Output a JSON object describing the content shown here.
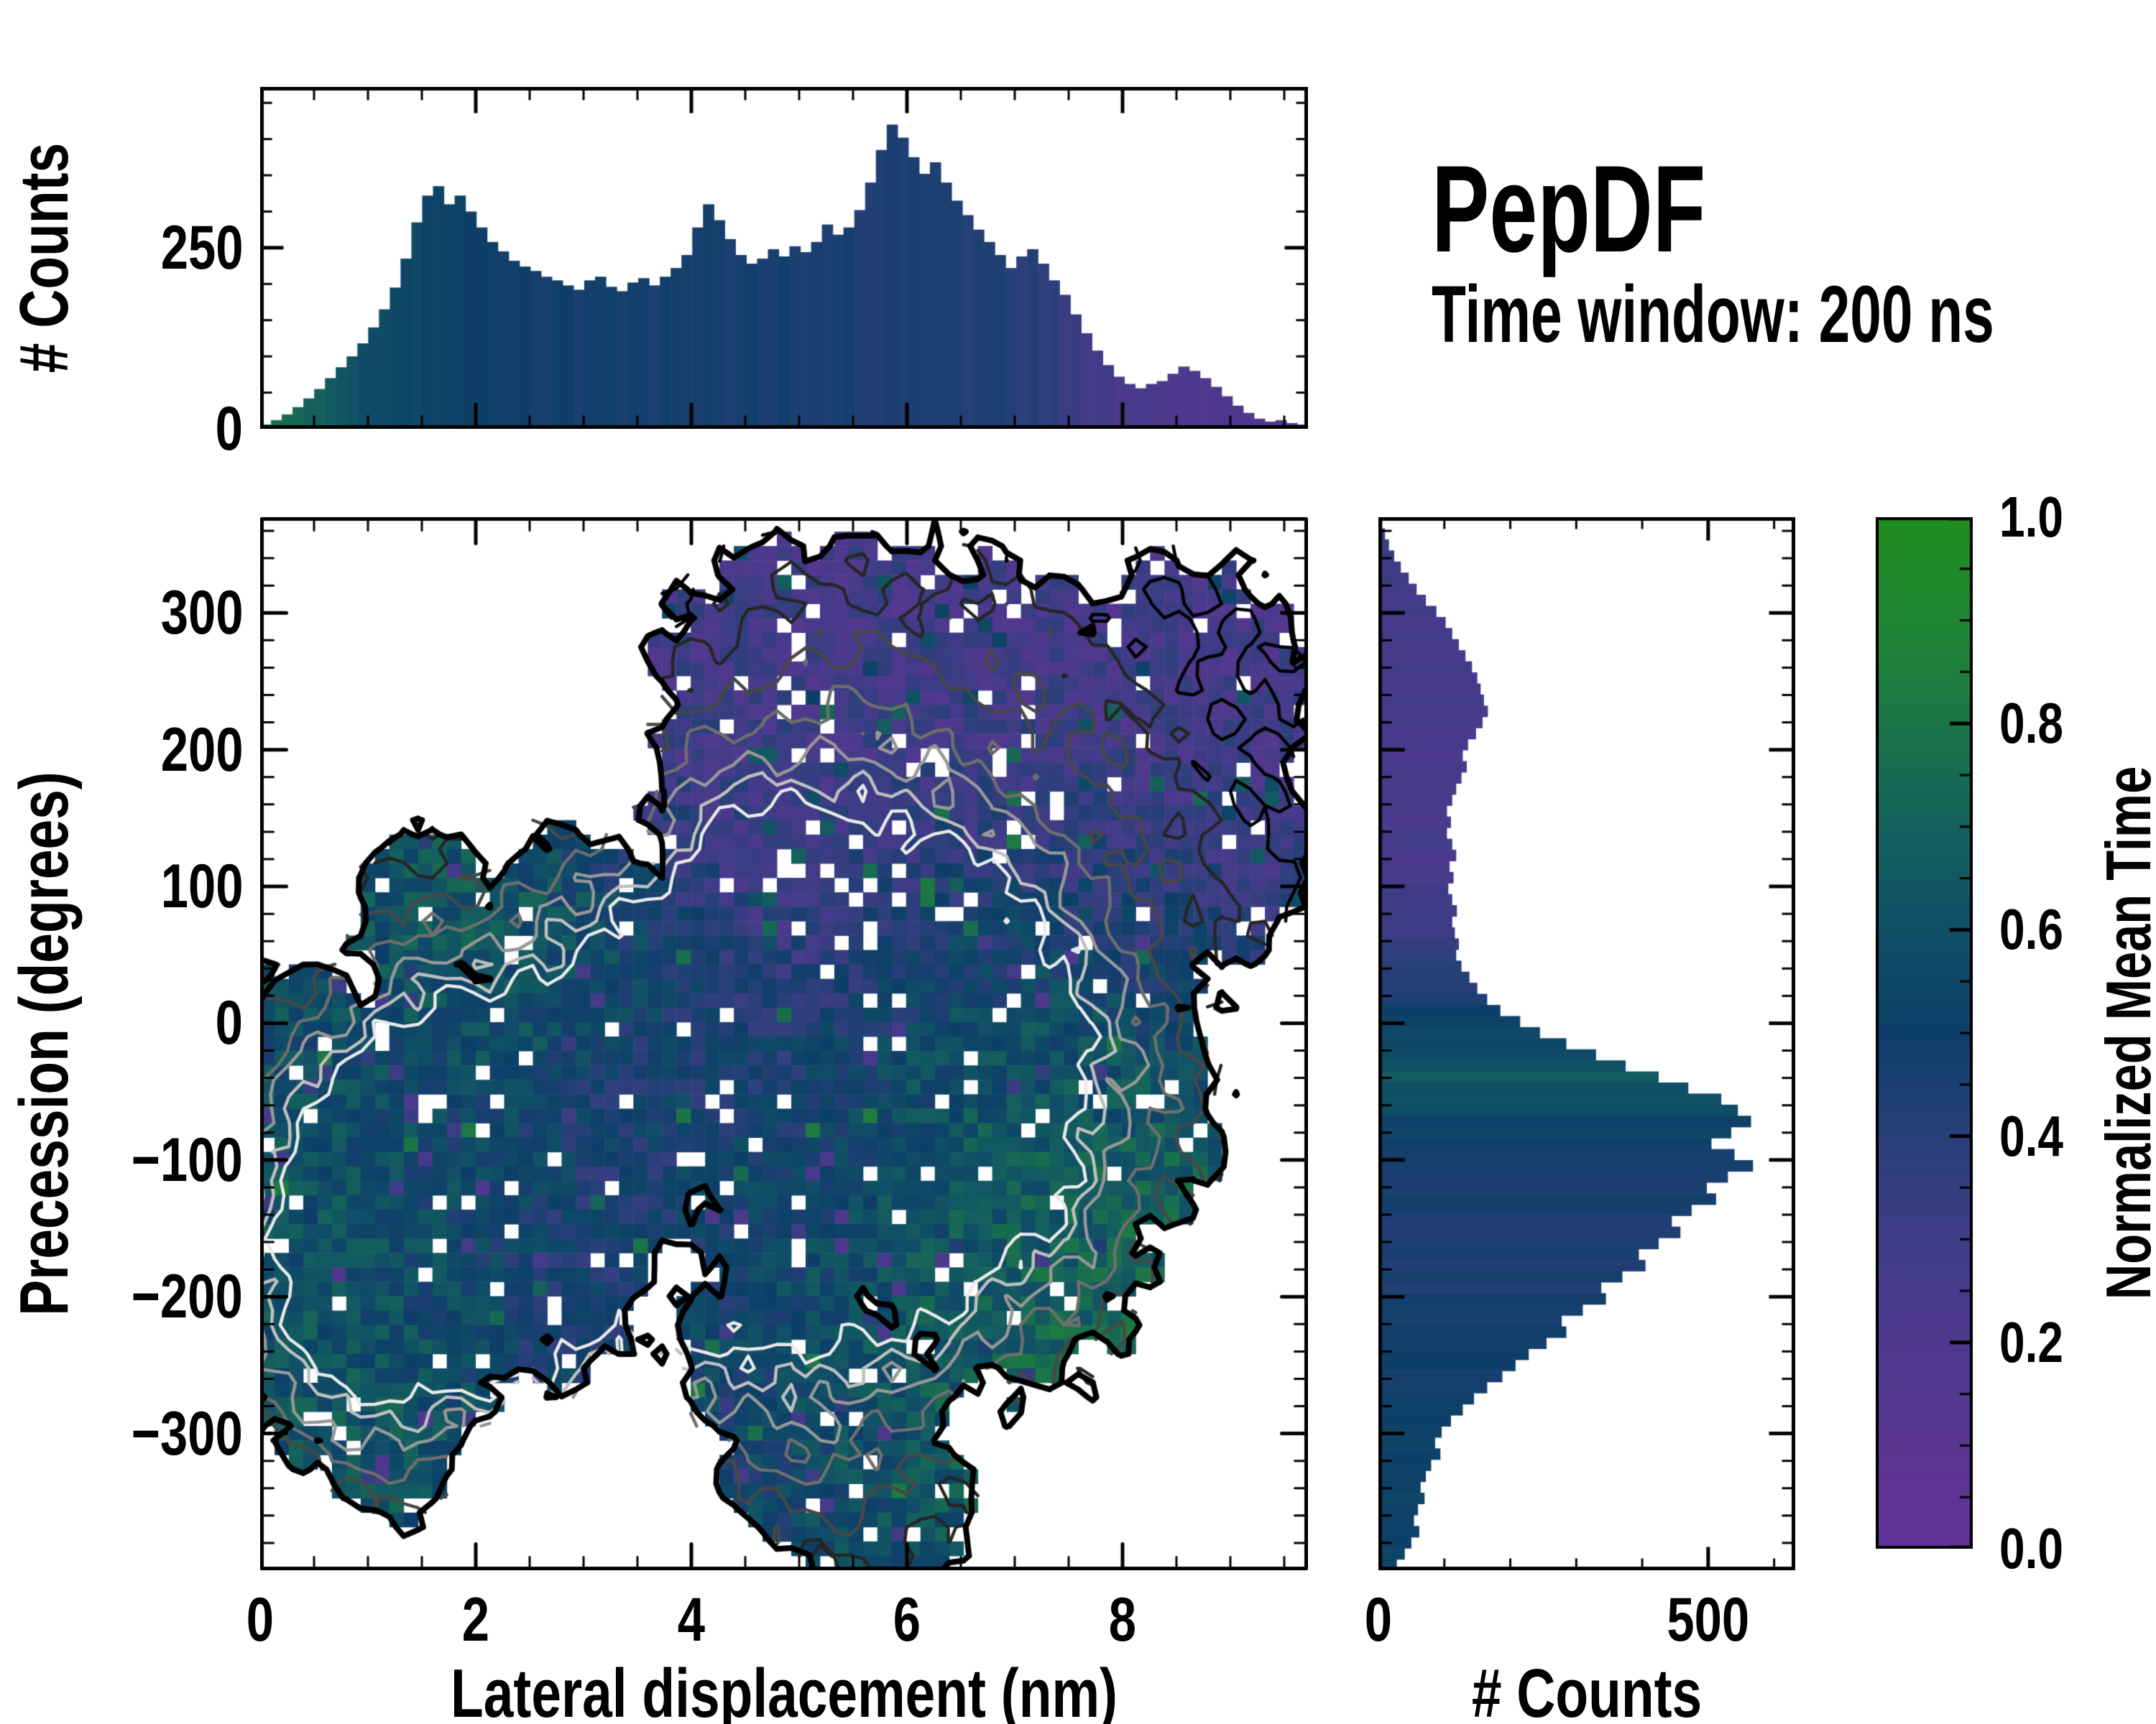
{
  "title": {
    "name": "PepDF",
    "subtitle": "Time window: 200 ns"
  },
  "labels": {
    "top_ylabel": "# Counts",
    "main_xlabel": "Lateral displacement (nm)",
    "main_ylabel": "Precession (degrees)",
    "right_xlabel": "# Counts",
    "colorbar_label": "Normalized Mean Time"
  },
  "colors": {
    "background": "#ffffff",
    "axis": "#000000",
    "colormap_stops": [
      [
        0,
        "#613299"
      ],
      [
        0.12,
        "#57368f"
      ],
      [
        0.25,
        "#473a8b"
      ],
      [
        0.38,
        "#2e3f7c"
      ],
      [
        0.5,
        "#0d3f68"
      ],
      [
        0.6,
        "#104f66"
      ],
      [
        0.7,
        "#14605c"
      ],
      [
        0.8,
        "#1b7547"
      ],
      [
        0.9,
        "#218634"
      ],
      [
        1,
        "#1f8c1f"
      ]
    ],
    "contour_colors": [
      "#000000",
      "#262626",
      "#474747",
      "#6e6e6e",
      "#979797",
      "#bfbfbf",
      "#e9e9e9"
    ],
    "outline_color": "#000000"
  },
  "chart_data": [
    {
      "type": "bar",
      "panel": "top-histogram",
      "ylabel": "# Counts",
      "xlim": [
        0,
        9.72
      ],
      "ylim": [
        0,
        472
      ],
      "bin_width": 0.1,
      "x_start": 0.05,
      "values": [
        6,
        12,
        20,
        30,
        42,
        55,
        70,
        85,
        100,
        118,
        140,
        165,
        195,
        235,
        285,
        322,
        335,
        310,
        322,
        300,
        278,
        258,
        245,
        232,
        224,
        218,
        210,
        205,
        198,
        192,
        205,
        210,
        196,
        190,
        202,
        208,
        198,
        210,
        222,
        240,
        278,
        310,
        288,
        262,
        240,
        228,
        235,
        248,
        238,
        252,
        244,
        258,
        282,
        268,
        278,
        302,
        340,
        385,
        420,
        402,
        375,
        352,
        368,
        340,
        315,
        295,
        275,
        258,
        240,
        222,
        238,
        248,
        228,
        205,
        185,
        158,
        132,
        108,
        88,
        72,
        62,
        56,
        62,
        66,
        76,
        86,
        80,
        70,
        58,
        45,
        32,
        22,
        14,
        10,
        12,
        8,
        6
      ],
      "yticks": {
        "values": [
          0,
          250
        ],
        "labels": [
          "0",
          "250"
        ],
        "minor_step": 50,
        "minor_max": 450
      },
      "xticks": {
        "values": [
          0,
          2,
          4,
          6,
          8
        ],
        "labels": [
          "0",
          "2",
          "4",
          "6",
          "8"
        ],
        "minor_step": 0.5
      },
      "color_profile": [
        [
          0,
          0.8
        ],
        [
          0.5,
          0.7
        ],
        [
          0.9,
          0.6
        ],
        [
          1.2,
          0.55
        ],
        [
          1.8,
          0.52
        ],
        [
          2.4,
          0.49
        ],
        [
          3.2,
          0.47
        ],
        [
          4.2,
          0.46
        ],
        [
          5.0,
          0.47
        ],
        [
          5.6,
          0.44
        ],
        [
          6.2,
          0.43
        ],
        [
          6.9,
          0.42
        ],
        [
          7.3,
          0.38
        ],
        [
          7.7,
          0.28
        ],
        [
          8.1,
          0.22
        ],
        [
          8.6,
          0.21
        ],
        [
          9.7,
          0.2
        ]
      ]
    },
    {
      "type": "heatmap",
      "panel": "joint-distribution",
      "xlabel": "Lateral displacement (nm)",
      "ylabel": "Precession (degrees)",
      "xlim": [
        0,
        9.72
      ],
      "ylim": [
        -400,
        370
      ],
      "xticks": {
        "values": [
          0,
          2,
          4,
          6,
          8
        ],
        "labels": [
          "0",
          "2",
          "4",
          "6",
          "8"
        ],
        "minor_step": 0.5
      },
      "yticks": {
        "values": [
          300,
          200,
          100,
          0,
          -100,
          -200,
          -300
        ],
        "labels": [
          "300",
          "200",
          "100",
          "0",
          "−100",
          "−200",
          "−300"
        ],
        "minor_step": 20
      },
      "colorbar_label": "Normalized Mean Time",
      "clim": [
        0,
        1
      ],
      "colorbar_ticks": {
        "values": [
          0,
          0.2,
          0.4,
          0.6,
          0.8,
          1.0
        ],
        "labels": [
          "0.0",
          "0.2",
          "0.4",
          "0.6",
          "0.8",
          "1.0"
        ],
        "minor_step": 0.05
      },
      "grid": [
        73,
        73
      ],
      "distribution": {
        "mask_blobs": [
          [
            5.0,
            240,
            1.3,
            115
          ],
          [
            6.3,
            190,
            2.25,
            150
          ],
          [
            8.65,
            245,
            1.05,
            95
          ],
          [
            7.7,
            110,
            1.55,
            115
          ],
          [
            8.9,
            135,
            0.85,
            85
          ],
          [
            5.6,
            312,
            0.75,
            42
          ],
          [
            4.55,
            120,
            0.95,
            95
          ],
          [
            4.2,
            -5,
            1.25,
            105
          ],
          [
            3.0,
            55,
            1.1,
            80
          ],
          [
            1.5,
            85,
            0.6,
            55
          ],
          [
            1.9,
            -115,
            2.0,
            160
          ],
          [
            0.55,
            -185,
            0.95,
            130
          ],
          [
            2.9,
            -70,
            1.5,
            130
          ],
          [
            1.15,
            -265,
            0.85,
            85
          ],
          [
            0.5,
            -40,
            0.75,
            85
          ],
          [
            1.3,
            -310,
            0.42,
            55
          ],
          [
            5.6,
            -55,
            1.9,
            165
          ],
          [
            6.9,
            -145,
            1.35,
            125
          ],
          [
            7.35,
            -25,
            1.3,
            95
          ],
          [
            6.5,
            45,
            1.05,
            85
          ],
          [
            8.1,
            -60,
            0.8,
            90
          ],
          [
            5.3,
            -300,
            1.05,
            95
          ],
          [
            5.75,
            -360,
            0.85,
            70
          ],
          [
            4.85,
            -245,
            0.95,
            85
          ]
        ],
        "value_blobs": [
          [
            6.3,
            200,
            2.6,
            150,
            0.24,
            3.0
          ],
          [
            8.6,
            240,
            1.2,
            100,
            0.22,
            2.0
          ],
          [
            7.8,
            110,
            1.6,
            110,
            0.24,
            2.0
          ],
          [
            4.9,
            255,
            1.2,
            90,
            0.26,
            1.5
          ],
          [
            4.7,
            70,
            0.55,
            55,
            0.1,
            1.8
          ],
          [
            3.3,
            -25,
            0.4,
            45,
            0.25,
            1.2
          ],
          [
            1.8,
            -120,
            1.9,
            150,
            0.5,
            2.2
          ],
          [
            0.5,
            -110,
            0.8,
            150,
            0.68,
            1.6
          ],
          [
            1.0,
            -250,
            1.0,
            100,
            0.66,
            1.4
          ],
          [
            2.8,
            60,
            0.8,
            80,
            0.85,
            1.8
          ],
          [
            1.4,
            90,
            0.6,
            60,
            0.8,
            1.2
          ],
          [
            3.6,
            -150,
            0.8,
            80,
            0.32,
            1.3
          ],
          [
            2.6,
            -210,
            0.7,
            60,
            0.38,
            1.0
          ],
          [
            2.3,
            -60,
            1.0,
            90,
            0.55,
            1.0
          ],
          [
            5.6,
            -50,
            1.5,
            130,
            0.48,
            2.0
          ],
          [
            7.2,
            -80,
            1.5,
            160,
            0.8,
            2.4
          ],
          [
            6.4,
            -220,
            1.2,
            90,
            0.78,
            1.6
          ],
          [
            8.1,
            -10,
            0.9,
            80,
            0.75,
            1.2
          ],
          [
            6.9,
            30,
            0.8,
            70,
            0.82,
            1.2
          ],
          [
            4.9,
            -140,
            1.0,
            100,
            0.45,
            1.2
          ],
          [
            4.0,
            20,
            0.8,
            80,
            0.62,
            1.4
          ],
          [
            4.5,
            120,
            0.8,
            80,
            0.3,
            1.2
          ],
          [
            5.3,
            -300,
            1.2,
            110,
            0.5,
            1.8
          ],
          [
            4.6,
            -230,
            0.8,
            70,
            0.52,
            1.2
          ],
          [
            1.3,
            -300,
            0.5,
            70,
            0.64,
            1.4
          ]
        ],
        "density_peaks": [
          [
            1.75,
            -120,
            1.45,
            130,
            1.0
          ],
          [
            5.6,
            -40,
            1.45,
            115,
            1.02
          ],
          [
            3.6,
            -90,
            1.7,
            150,
            0.55
          ],
          [
            6.2,
            190,
            2.1,
            150,
            0.42
          ],
          [
            0.9,
            -200,
            0.9,
            110,
            0.5
          ],
          [
            7.0,
            -100,
            1.5,
            140,
            0.5
          ],
          [
            5.2,
            -300,
            1.2,
            110,
            0.33
          ],
          [
            4.6,
            110,
            0.9,
            90,
            0.3
          ]
        ],
        "contour_levels": [
          0.16,
          0.3,
          0.44,
          0.58,
          0.71,
          0.82,
          0.91
        ],
        "hole_fraction": 0.045,
        "hole_fraction_upper": 0.075,
        "seed": 42
      }
    },
    {
      "type": "bar",
      "panel": "right-histogram",
      "xlabel": "# Counts",
      "orientation": "horizontal",
      "xlim": [
        0,
        632
      ],
      "ylim": [
        -400,
        370
      ],
      "bin_count": 95,
      "values": [
        6,
        10,
        16,
        24,
        34,
        46,
        58,
        72,
        88,
        102,
        112,
        122,
        132,
        142,
        150,
        155,
        160,
        166,
        158,
        148,
        136,
        128,
        134,
        126,
        118,
        112,
        104,
        110,
        104,
        112,
        118,
        108,
        114,
        106,
        112,
        119,
        112,
        116,
        122,
        118,
        126,
        138,
        150,
        165,
        185,
        215,
        245,
        285,
        330,
        375,
        425,
        470,
        520,
        545,
        565,
        535,
        505,
        540,
        568,
        530,
        498,
        512,
        475,
        445,
        458,
        425,
        395,
        405,
        370,
        338,
        345,
        310,
        278,
        285,
        255,
        228,
        208,
        188,
        165,
        145,
        128,
        110,
        96,
        86,
        94,
        80,
        72,
        64,
        70,
        60,
        54,
        62,
        50,
        40,
        28
      ],
      "xticks": {
        "values": [
          0,
          500
        ],
        "labels": [
          "0",
          "500"
        ],
        "minor_step": 100,
        "minor_max": 600
      },
      "color_profile": [
        [
          370,
          0.34
        ],
        [
          300,
          0.27
        ],
        [
          240,
          0.25
        ],
        [
          180,
          0.24
        ],
        [
          120,
          0.25
        ],
        [
          70,
          0.3
        ],
        [
          30,
          0.42
        ],
        [
          0,
          0.52
        ],
        [
          -25,
          0.58
        ],
        [
          -40,
          0.65
        ],
        [
          -60,
          0.58
        ],
        [
          -75,
          0.52
        ],
        [
          -100,
          0.47
        ],
        [
          -130,
          0.45
        ],
        [
          -170,
          0.44
        ],
        [
          -210,
          0.46
        ],
        [
          -250,
          0.48
        ],
        [
          -300,
          0.5
        ],
        [
          -350,
          0.53
        ],
        [
          -400,
          0.52
        ]
      ]
    }
  ]
}
